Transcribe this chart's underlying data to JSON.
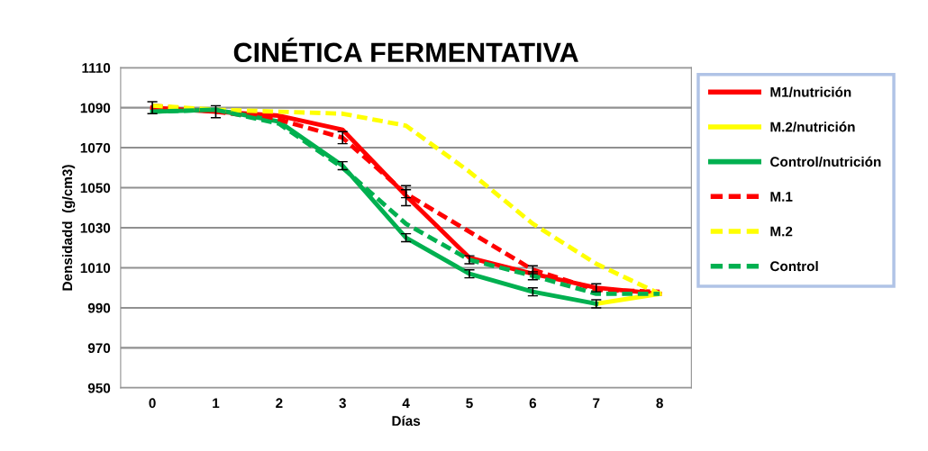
{
  "chart_data": {
    "type": "line",
    "title": "CINÉTICA FERMENTATIVA",
    "xlabel": "Días",
    "ylabel": "Densidadd  (g/cm3)",
    "x": [
      0,
      1,
      2,
      3,
      4,
      5,
      6,
      7,
      8
    ],
    "xlim": [
      -0.5,
      8.5
    ],
    "xticks": [
      0,
      1,
      2,
      3,
      4,
      5,
      6,
      7,
      8
    ],
    "ylim": [
      950,
      1110
    ],
    "yticks": [
      950,
      970,
      990,
      1010,
      1030,
      1050,
      1070,
      1090,
      1110
    ],
    "grid": "y",
    "legend": "right",
    "marker": "none",
    "series": [
      {
        "name": "M1/nutrición",
        "color": "#ff0000",
        "line_style": "solid",
        "values": [
          1090,
          1088,
          1086,
          1079,
          1046,
          1015,
          1007,
          1000,
          997
        ],
        "errors": [
          3,
          3,
          null,
          null,
          5,
          null,
          null,
          2,
          null
        ]
      },
      {
        "name": "M.2/nutrición",
        "color": "#ffff00",
        "line_style": "solid",
        "values": [
          null,
          null,
          null,
          null,
          null,
          null,
          null,
          992,
          997
        ]
      },
      {
        "name": "Control/nutrición",
        "color": "#00b050",
        "line_style": "solid",
        "values": [
          1088,
          1089,
          1083,
          1061,
          1025,
          1007,
          998,
          992,
          null
        ],
        "errors": [
          null,
          null,
          null,
          2,
          2,
          2,
          2,
          2,
          null
        ]
      },
      {
        "name": "M.1",
        "color": "#ff0000",
        "line_style": "dashed",
        "values": [
          1091,
          1088,
          1084,
          1075,
          1047,
          1028,
          1009,
          999,
          998
        ],
        "errors": [
          null,
          null,
          null,
          3,
          2,
          null,
          2,
          null,
          null
        ]
      },
      {
        "name": "M.2",
        "color": "#ffff00",
        "line_style": "dashed",
        "values": [
          1091,
          1089,
          1088,
          1087,
          1081,
          1058,
          1032,
          1012,
          997
        ]
      },
      {
        "name": "Control",
        "color": "#00b050",
        "line_style": "dashed",
        "values": [
          1088,
          1089,
          1082,
          1060,
          1032,
          1014,
          1006,
          997,
          997
        ],
        "errors": [
          null,
          null,
          null,
          null,
          null,
          2,
          2,
          null,
          null
        ]
      }
    ]
  }
}
